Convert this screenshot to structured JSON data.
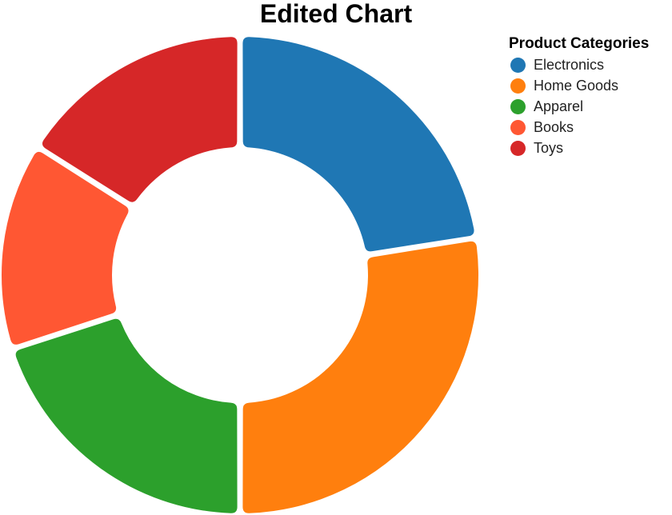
{
  "chart_data": {
    "type": "pie",
    "title": "Edited Chart",
    "legend": {
      "title": "Product Categories",
      "position": "top-right"
    },
    "categories": [
      "Electronics",
      "Home Goods",
      "Apparel",
      "Books",
      "Toys"
    ],
    "values": [
      22.5,
      27.5,
      20,
      14,
      16
    ],
    "colors": [
      "#1f77b4",
      "#ff7f0e",
      "#2ca02c",
      "#ff5733",
      "#d62728"
    ],
    "donut": true
  }
}
